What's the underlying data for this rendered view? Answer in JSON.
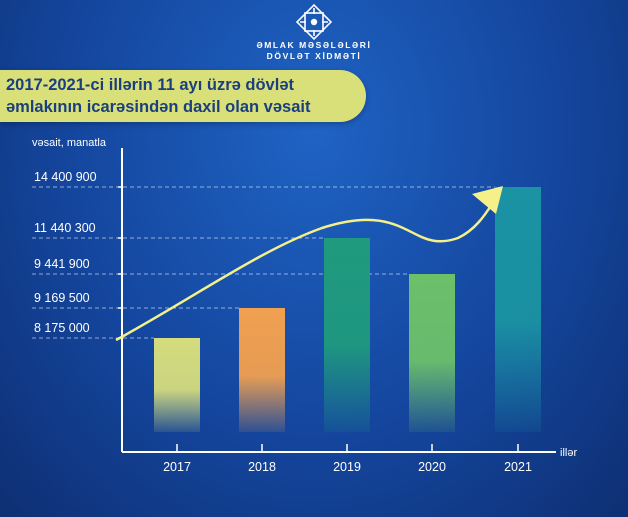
{
  "org": {
    "line1": "ƏMLAK MƏSƏLƏLƏRİ",
    "line2": "DÖVLƏT XİDMƏTİ",
    "logo_icon": "state-emblem-icon"
  },
  "banner": {
    "line1": "2017-2021-ci illərin 11 ayı üzrə dövlət",
    "line2": "əmlakının icarəsindən daxil olan vəsait"
  },
  "colors": {
    "background": "#14469e",
    "banner": "#d9e07a",
    "banner_text": "#1b3f7e",
    "trend_arrow": "#f5f08a"
  },
  "chart_data": {
    "type": "bar",
    "title": "2017-2021-ci illərin 11 ayı üzrə dövlət əmlakının icarəsindən daxil olan vəsait",
    "ylabel": "vəsait, manatla",
    "xlabel": "illər",
    "categories": [
      "2017",
      "2018",
      "2019",
      "2020",
      "2021"
    ],
    "values": [
      8175000,
      9169500,
      11440300,
      9441900,
      14400900
    ],
    "value_labels": [
      "8 175 000",
      "9 169 500",
      "11 440 300",
      "9 441 900",
      "14 400 900"
    ],
    "bar_colors": [
      "#d4dc7e",
      "#f0a050",
      "#1f9a7e",
      "#6cc06a",
      "#1a93a3"
    ],
    "legend": "none",
    "grid": "dashed guide lines at each value"
  }
}
